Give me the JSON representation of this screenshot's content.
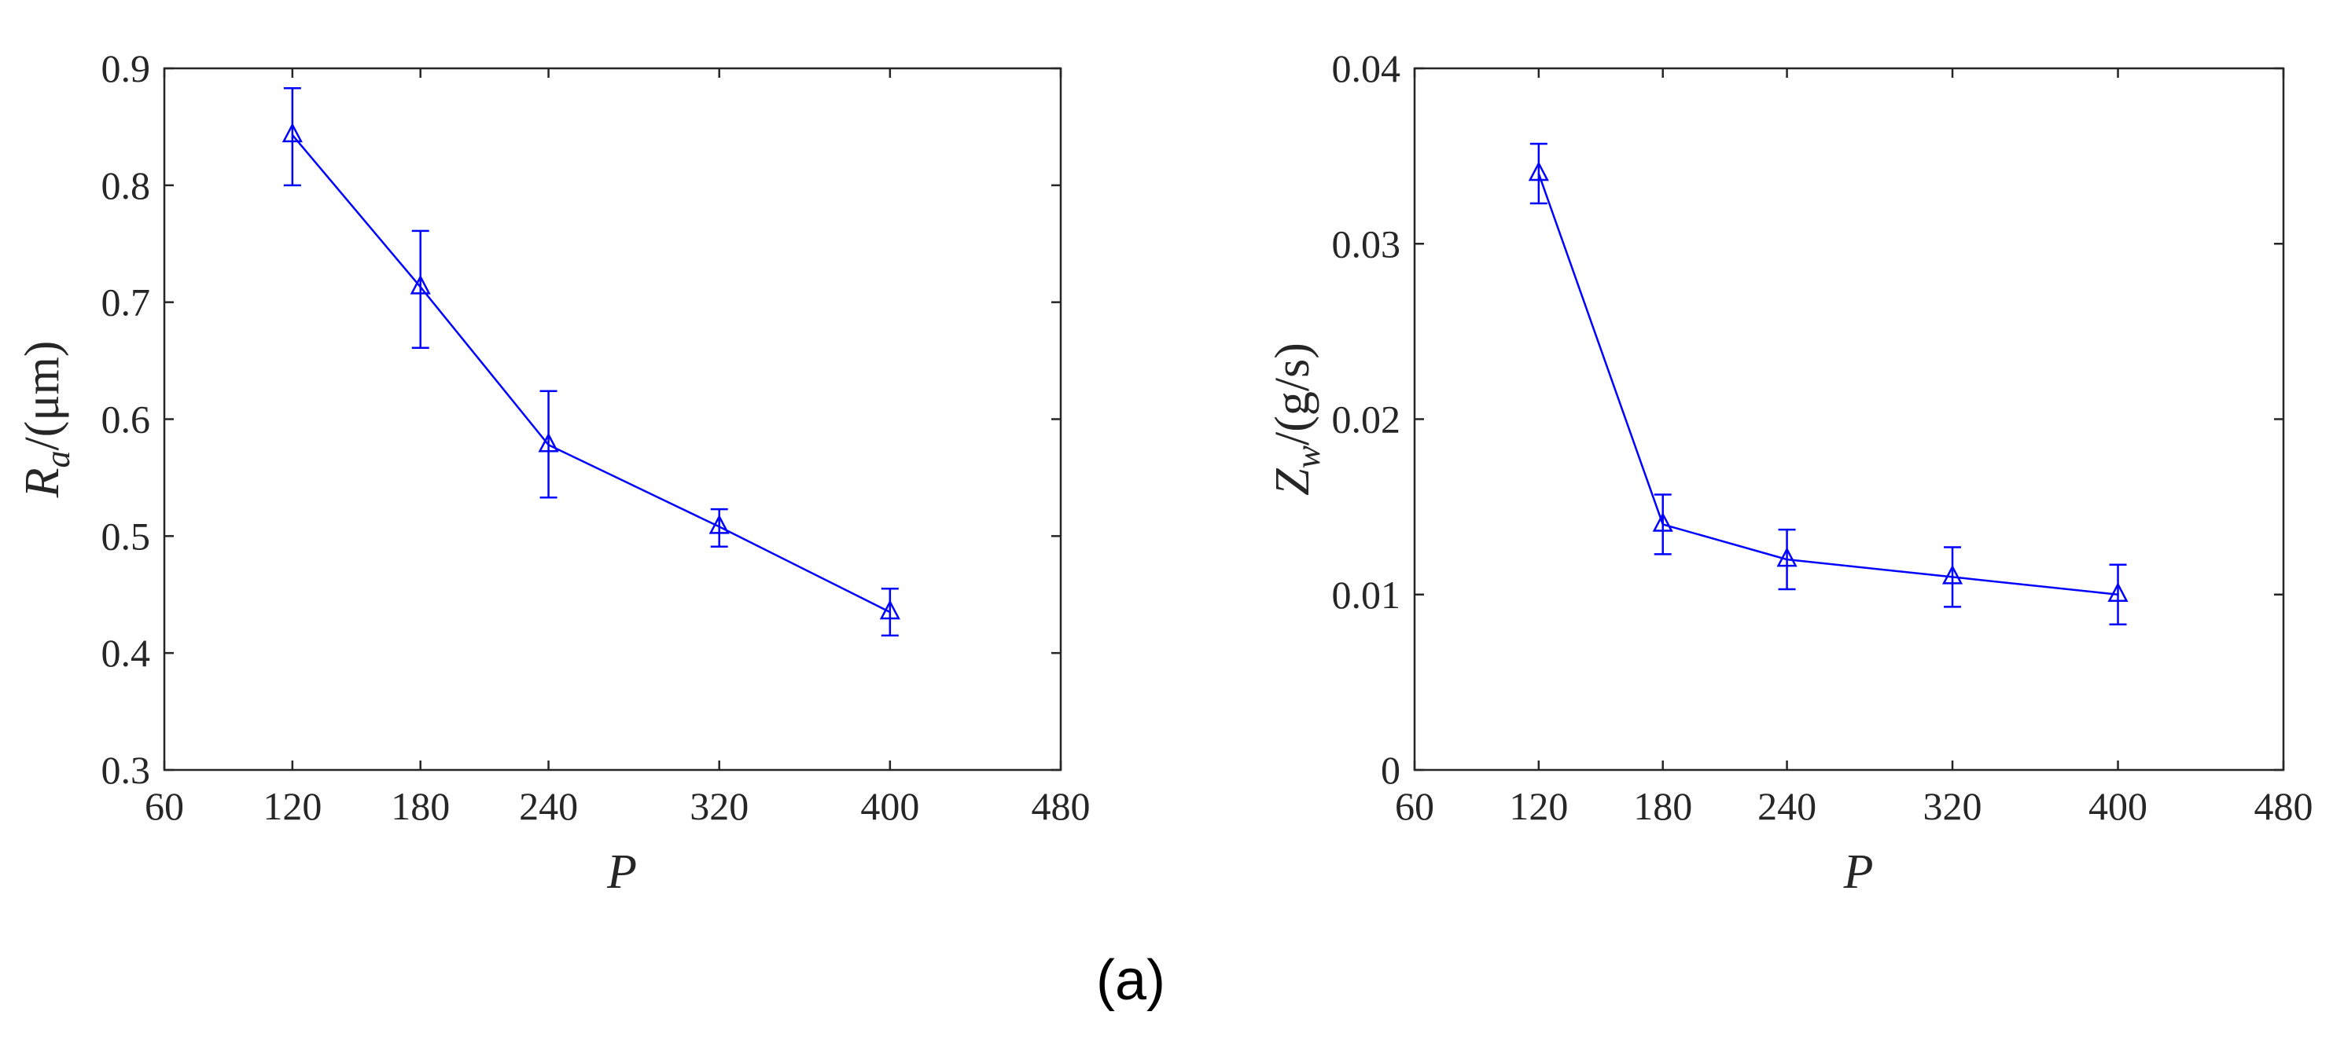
{
  "caption": "(a)",
  "colors": {
    "series": "#0000ff",
    "axis": "#262626",
    "background": "#ffffff"
  },
  "chart_data": [
    {
      "type": "line",
      "title": "",
      "xlabel": "P",
      "ylabel": "Ra/(μm)",
      "ylabel_parts": {
        "main": "R",
        "sub": "a",
        "rest": "/(μm)"
      },
      "xlim": [
        60,
        480
      ],
      "ylim": [
        0.3,
        0.9
      ],
      "xticks": [
        60,
        120,
        180,
        240,
        320,
        400,
        480
      ],
      "yticks": [
        0.3,
        0.4,
        0.5,
        0.6,
        0.7,
        0.8,
        0.9
      ],
      "ytick_labels": [
        "0.3",
        "0.4",
        "0.5",
        "0.6",
        "0.7",
        "0.8",
        "0.9"
      ],
      "marker": "triangle-open",
      "series": [
        {
          "name": "Ra",
          "x": [
            120,
            180,
            240,
            320,
            400
          ],
          "y": [
            0.843,
            0.713,
            0.578,
            0.508,
            0.435
          ],
          "err_low": [
            0.043,
            0.052,
            0.045,
            0.017,
            0.02
          ],
          "err_high": [
            0.04,
            0.048,
            0.046,
            0.015,
            0.02
          ]
        }
      ]
    },
    {
      "type": "line",
      "title": "",
      "xlabel": "P",
      "ylabel": "Zw/(g/s)",
      "ylabel_parts": {
        "main": "Z",
        "sub": "w",
        "rest": "/(g/s)"
      },
      "xlim": [
        60,
        480
      ],
      "ylim": [
        0,
        0.04
      ],
      "xticks": [
        60,
        120,
        180,
        240,
        320,
        400,
        480
      ],
      "yticks": [
        0,
        0.01,
        0.02,
        0.03,
        0.04
      ],
      "ytick_labels": [
        "0",
        "0.01",
        "0.02",
        "0.03",
        "0.04"
      ],
      "marker": "triangle-open",
      "series": [
        {
          "name": "Zw",
          "x": [
            120,
            180,
            240,
            320,
            400
          ],
          "y": [
            0.034,
            0.014,
            0.012,
            0.011,
            0.01
          ],
          "err_low": [
            0.0017,
            0.0017,
            0.0017,
            0.0017,
            0.0017
          ],
          "err_high": [
            0.0017,
            0.0017,
            0.0017,
            0.0017,
            0.0017
          ]
        }
      ]
    }
  ]
}
